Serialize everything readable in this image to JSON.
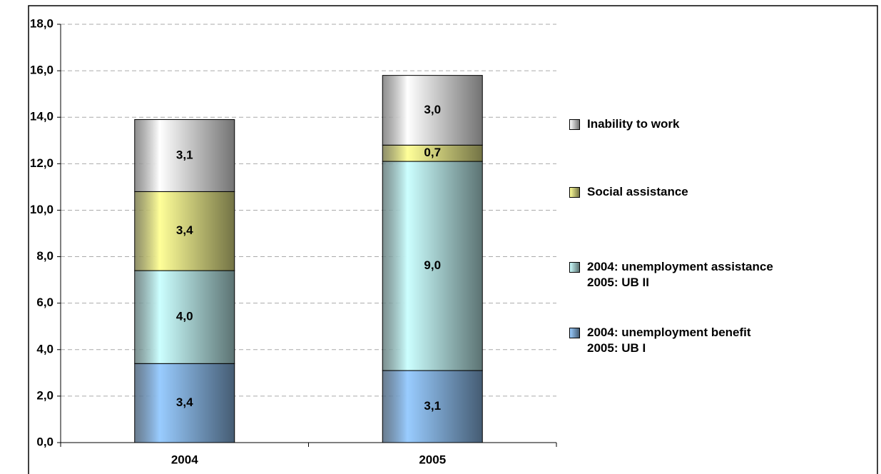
{
  "chart_data": {
    "type": "stacked-bar",
    "categories": [
      "2004",
      "2005"
    ],
    "series": [
      {
        "name": "2004: unemployment benefit\n2005: UB I",
        "color": "#99ccff",
        "values": [
          3.4,
          3.1
        ],
        "value_labels": [
          "3,4",
          "3,1"
        ]
      },
      {
        "name": "2004: unemployment assistance\n2005: UB II",
        "color": "#ccffff",
        "values": [
          4.0,
          9.0
        ],
        "value_labels": [
          "4,0",
          "9,0"
        ]
      },
      {
        "name": "Social assistance",
        "color": "#ffff99",
        "values": [
          3.4,
          0.7
        ],
        "value_labels": [
          "3,4",
          "0,7"
        ]
      },
      {
        "name": "Inability to work",
        "color": "#ffffff",
        "values": [
          3.1,
          3.0
        ],
        "value_labels": [
          "3,1",
          "3,0"
        ]
      }
    ],
    "ylim": [
      0,
      18
    ],
    "yticks": [
      {
        "value": 0,
        "label": "0,0"
      },
      {
        "value": 2,
        "label": "2,0"
      },
      {
        "value": 4,
        "label": "4,0"
      },
      {
        "value": 6,
        "label": "6,0"
      },
      {
        "value": 8,
        "label": "8,0"
      },
      {
        "value": 10,
        "label": "10,0"
      },
      {
        "value": 12,
        "label": "12,0"
      },
      {
        "value": 14,
        "label": "14,0"
      },
      {
        "value": 16,
        "label": "16,0"
      },
      {
        "value": 18,
        "label": "18,0"
      }
    ],
    "grid": true
  }
}
